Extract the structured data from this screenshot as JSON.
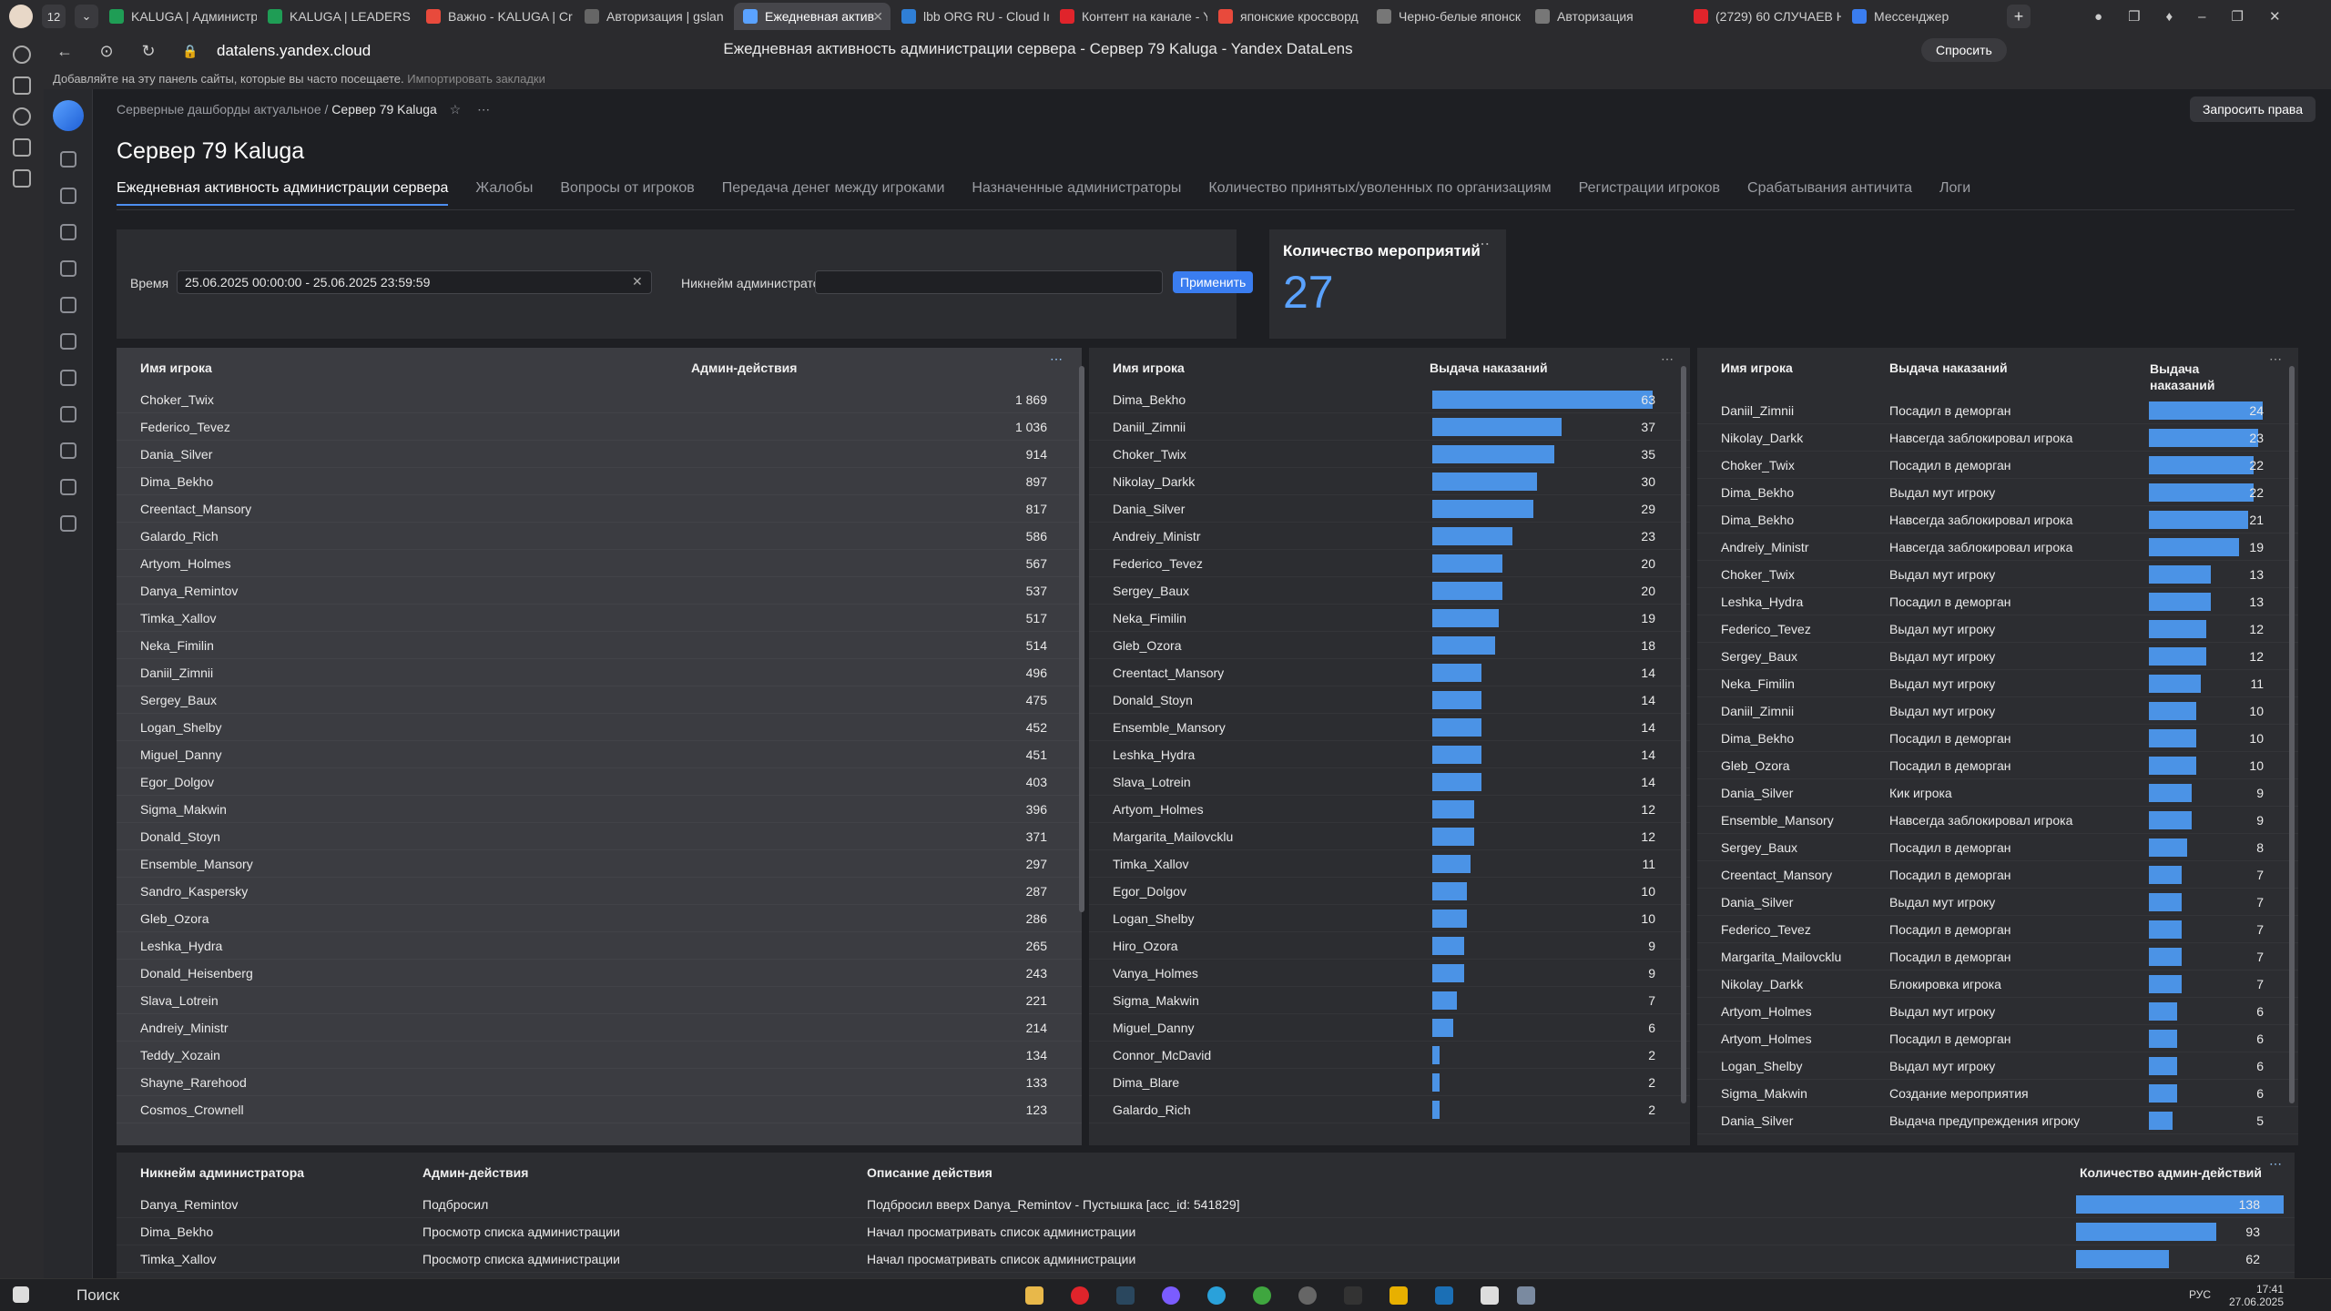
{
  "browser": {
    "tabs": [
      {
        "label": "KALUGA | Администр",
        "color": "#1f9d55"
      },
      {
        "label": "KALUGA | LEADERS",
        "color": "#1f9d55"
      },
      {
        "label": "Важно - KALUGA | Cr",
        "color": "#e84a3c"
      },
      {
        "label": "Авторизация | gslan",
        "color": "#666"
      },
      {
        "label": "Ежедневная актив",
        "color": "#5aa2ff",
        "active": true
      },
      {
        "label": "lbb ORG RU - Cloud In",
        "color": "#2f7fd6"
      },
      {
        "label": "Контент на канале - Y",
        "color": "#e0242b"
      },
      {
        "label": "японские кроссворд",
        "color": "#e84a3c"
      },
      {
        "label": "Черно-белые японск",
        "color": "#777"
      },
      {
        "label": "Авторизация",
        "color": "#777"
      },
      {
        "label": "(2729) 60 СЛУЧАЕВ Н",
        "color": "#e0242b"
      },
      {
        "label": "Мессенджер",
        "color": "#3a7df0"
      }
    ],
    "tab_count": "12",
    "url": "datalens.yandex.cloud",
    "page_title": "Ежедневная активность администрации сервера - Сервер 79 Kaluga - Yandex DataLens",
    "ask_label": "Спросить",
    "bookmarks_text": "Добавляйте на эту панель сайты, которые вы часто посещаете.",
    "bookmarks_import": "Импортировать закладки"
  },
  "header": {
    "breadcrumb_parent": "Серверные дашборды актуальное",
    "breadcrumb_sep": "/",
    "breadcrumb_current": "Сервер 79 Kaluga",
    "request_label": "Запросить права",
    "title": "Сервер 79 Kaluga",
    "tabs": [
      "Ежедневная активность администрации сервера",
      "Жалобы",
      "Вопросы от игроков",
      "Передача денег между игроками",
      "Назначенные администраторы",
      "Количество принятых/уволенных по организациям",
      "Регистрации игроков",
      "Срабатывания античита",
      "Логи"
    ]
  },
  "filters": {
    "time_label": "Время",
    "time_value": "25.06.2025 00:00:00 - 25.06.2025 23:59:59",
    "admin_label": "Никнейм администратора",
    "admin_value": "",
    "apply_label": "Применить"
  },
  "kpi": {
    "title": "Количество мероприятий",
    "value": "27"
  },
  "table1": {
    "col_player": "Имя игрока",
    "col_actions": "Админ-действия",
    "rows": [
      [
        "Choker_Twix",
        "1 869"
      ],
      [
        "Federico_Tevez",
        "1 036"
      ],
      [
        "Dania_Silver",
        "914"
      ],
      [
        "Dima_Bekho",
        "897"
      ],
      [
        "Creentact_Mansory",
        "817"
      ],
      [
        "Galardo_Rich",
        "586"
      ],
      [
        "Artyom_Holmes",
        "567"
      ],
      [
        "Danya_Remintov",
        "537"
      ],
      [
        "Timka_Xallov",
        "517"
      ],
      [
        "Neka_Fimilin",
        "514"
      ],
      [
        "Daniil_Zimnii",
        "496"
      ],
      [
        "Sergey_Baux",
        "475"
      ],
      [
        "Logan_Shelby",
        "452"
      ],
      [
        "Miguel_Danny",
        "451"
      ],
      [
        "Egor_Dolgov",
        "403"
      ],
      [
        "Sigma_Makwin",
        "396"
      ],
      [
        "Donald_Stoyn",
        "371"
      ],
      [
        "Ensemble_Mansory",
        "297"
      ],
      [
        "Sandro_Kaspersky",
        "287"
      ],
      [
        "Gleb_Ozora",
        "286"
      ],
      [
        "Leshka_Hydra",
        "265"
      ],
      [
        "Donald_Heisenberg",
        "243"
      ],
      [
        "Slava_Lotrein",
        "221"
      ],
      [
        "Andreiy_Ministr",
        "214"
      ],
      [
        "Teddy_Xozain",
        "134"
      ],
      [
        "Shayne_Rarehood",
        "133"
      ],
      [
        "Cosmos_Crownell",
        "123"
      ]
    ]
  },
  "table2": {
    "col_player": "Имя игрока",
    "col_punish": "Выдача наказаний",
    "max": 63,
    "rows": [
      [
        "Dima_Bekho",
        63
      ],
      [
        "Daniil_Zimnii",
        37
      ],
      [
        "Choker_Twix",
        35
      ],
      [
        "Nikolay_Darkk",
        30
      ],
      [
        "Dania_Silver",
        29
      ],
      [
        "Andreiy_Ministr",
        23
      ],
      [
        "Federico_Tevez",
        20
      ],
      [
        "Sergey_Baux",
        20
      ],
      [
        "Neka_Fimilin",
        19
      ],
      [
        "Gleb_Ozora",
        18
      ],
      [
        "Creentact_Mansory",
        14
      ],
      [
        "Donald_Stoyn",
        14
      ],
      [
        "Ensemble_Mansory",
        14
      ],
      [
        "Leshka_Hydra",
        14
      ],
      [
        "Slava_Lotrein",
        14
      ],
      [
        "Artyom_Holmes",
        12
      ],
      [
        "Margarita_Mailovcklu",
        12
      ],
      [
        "Timka_Xallov",
        11
      ],
      [
        "Egor_Dolgov",
        10
      ],
      [
        "Logan_Shelby",
        10
      ],
      [
        "Hiro_Ozora",
        9
      ],
      [
        "Vanya_Holmes",
        9
      ],
      [
        "Sigma_Makwin",
        7
      ],
      [
        "Miguel_Danny",
        6
      ],
      [
        "Connor_McDavid",
        2
      ],
      [
        "Dima_Blare",
        2
      ],
      [
        "Galardo_Rich",
        2
      ]
    ]
  },
  "table3": {
    "col_player": "Имя игрока",
    "col_type": "Выдача наказаний",
    "col_count": "Выдача наказаний",
    "max": 24,
    "rows": [
      [
        "Daniil_Zimnii",
        "Посадил в деморган",
        24
      ],
      [
        "Nikolay_Darkk",
        "Навсегда заблокировал игрока",
        23
      ],
      [
        "Choker_Twix",
        "Посадил в деморган",
        22
      ],
      [
        "Dima_Bekho",
        "Выдал мут игроку",
        22
      ],
      [
        "Dima_Bekho",
        "Навсегда заблокировал игрока",
        21
      ],
      [
        "Andreiy_Ministr",
        "Навсегда заблокировал игрока",
        19
      ],
      [
        "Choker_Twix",
        "Выдал мут игроку",
        13
      ],
      [
        "Leshka_Hydra",
        "Посадил в деморган",
        13
      ],
      [
        "Federico_Tevez",
        "Выдал мут игроку",
        12
      ],
      [
        "Sergey_Baux",
        "Выдал мут игроку",
        12
      ],
      [
        "Neka_Fimilin",
        "Выдал мут игроку",
        11
      ],
      [
        "Daniil_Zimnii",
        "Выдал мут игроку",
        10
      ],
      [
        "Dima_Bekho",
        "Посадил в деморган",
        10
      ],
      [
        "Gleb_Ozora",
        "Посадил в деморган",
        10
      ],
      [
        "Dania_Silver",
        "Кик игрока",
        9
      ],
      [
        "Ensemble_Mansory",
        "Навсегда заблокировал игрока",
        9
      ],
      [
        "Sergey_Baux",
        "Посадил в деморган",
        8
      ],
      [
        "Creentact_Mansory",
        "Посадил в деморган",
        7
      ],
      [
        "Dania_Silver",
        "Выдал мут игроку",
        7
      ],
      [
        "Federico_Tevez",
        "Посадил в деморган",
        7
      ],
      [
        "Margarita_Mailovcklu",
        "Посадил в деморган",
        7
      ],
      [
        "Nikolay_Darkk",
        "Блокировка игрока",
        7
      ],
      [
        "Artyom_Holmes",
        "Выдал мут игроку",
        6
      ],
      [
        "Artyom_Holmes",
        "Посадил в деморган",
        6
      ],
      [
        "Logan_Shelby",
        "Выдал мут игроку",
        6
      ],
      [
        "Sigma_Makwin",
        "Создание мероприятия",
        6
      ],
      [
        "Dania_Silver",
        "Выдача предупреждения игроку",
        5
      ]
    ]
  },
  "table4": {
    "col_admin": "Никнейм администратора",
    "col_action": "Админ-действия",
    "col_desc": "Описание действия",
    "col_count": "Количество админ-действий",
    "max": 138,
    "rows": [
      [
        "Danya_Remintov",
        "Подбросил",
        "Подбросил вверх Danya_Remintov - Пустышка [acc_id: 541829]",
        138
      ],
      [
        "Dima_Bekho",
        "Просмотр списка администрации",
        "Начал просматривать список администрации",
        93
      ],
      [
        "Timka_Xallov",
        "Просмотр списка администрации",
        "Начал просматривать список администрации",
        62
      ]
    ]
  },
  "taskbar": {
    "search_label": "Поиск",
    "lang": "РУС",
    "time": "17:41",
    "date": "27.06.2025"
  }
}
